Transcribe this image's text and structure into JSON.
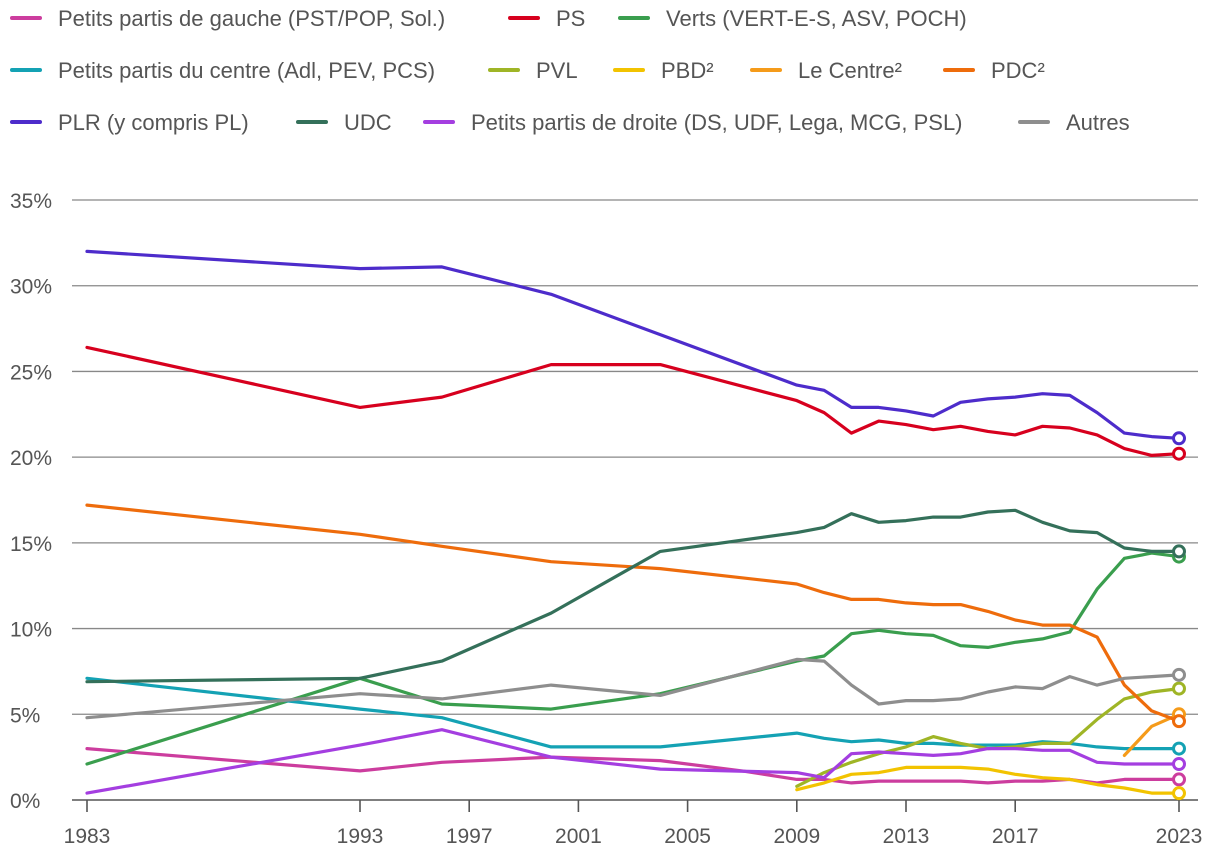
{
  "chart_data": {
    "type": "line",
    "title": "",
    "xlabel": "",
    "ylabel": "",
    "ylim": [
      0,
      35
    ],
    "xlim": [
      1983,
      2023
    ],
    "grid": true,
    "legend_position": "top",
    "x_ticks": [
      1983,
      1993,
      1997,
      2001,
      2005,
      2009,
      2013,
      2017,
      2023
    ],
    "y_ticks": [
      0,
      5,
      10,
      15,
      20,
      25,
      30,
      35
    ],
    "y_tick_labels": [
      "0%",
      "5%",
      "10%",
      "15%",
      "20%",
      "25%",
      "30%",
      "35%"
    ],
    "x_tick_labels": [
      "1983",
      "1993",
      "1997",
      "2001",
      "2005",
      "2009",
      "2013",
      "2017",
      "2023"
    ],
    "series": [
      {
        "name": "Petits partis de gauche (PST/POP, Sol.)",
        "color": "#cc3d9e",
        "x": [
          1983,
          1993,
          1996,
          2000,
          2004,
          2007,
          2009,
          2010,
          2011,
          2012,
          2013,
          2014,
          2015,
          2016,
          2017,
          2018,
          2019,
          2020,
          2021,
          2022,
          2023
        ],
        "values": [
          3.0,
          1.7,
          2.2,
          2.5,
          2.3,
          1.7,
          1.2,
          1.2,
          1.0,
          1.1,
          1.1,
          1.1,
          1.1,
          1.0,
          1.1,
          1.1,
          1.2,
          1.0,
          1.2,
          1.2,
          1.2
        ]
      },
      {
        "name": "PS",
        "color": "#d7001e",
        "x": [
          1983,
          1993,
          1996,
          2000,
          2004,
          2009,
          2010,
          2011,
          2012,
          2013,
          2014,
          2015,
          2016,
          2017,
          2018,
          2019,
          2020,
          2021,
          2022,
          2023
        ],
        "values": [
          26.4,
          22.9,
          23.5,
          25.4,
          25.4,
          23.3,
          22.6,
          21.4,
          22.1,
          21.9,
          21.6,
          21.8,
          21.5,
          21.3,
          21.8,
          21.7,
          21.3,
          20.5,
          20.1,
          20.2
        ]
      },
      {
        "name": "Verts (VERT-E-S, ASV, POCH)",
        "color": "#3a9e4e",
        "x": [
          1983,
          1993,
          1996,
          2000,
          2004,
          2009,
          2010,
          2011,
          2012,
          2013,
          2014,
          2015,
          2016,
          2017,
          2018,
          2019,
          2020,
          2021,
          2022,
          2023
        ],
        "values": [
          2.1,
          7.1,
          5.6,
          5.3,
          6.2,
          8.1,
          8.4,
          9.7,
          9.9,
          9.7,
          9.6,
          9.0,
          8.9,
          9.2,
          9.4,
          9.8,
          12.3,
          14.1,
          14.4,
          14.2
        ]
      },
      {
        "name": "Petits partis du centre (Adl, PEV, PCS)",
        "color": "#14a2b4",
        "x": [
          1983,
          1993,
          1996,
          2000,
          2004,
          2009,
          2010,
          2011,
          2012,
          2013,
          2014,
          2015,
          2016,
          2017,
          2018,
          2019,
          2020,
          2021,
          2022,
          2023
        ],
        "values": [
          7.1,
          5.3,
          4.8,
          3.1,
          3.1,
          3.9,
          3.6,
          3.4,
          3.5,
          3.3,
          3.3,
          3.2,
          3.2,
          3.2,
          3.4,
          3.3,
          3.1,
          3.0,
          3.0,
          3.0
        ]
      },
      {
        "name": "PVL",
        "color": "#9fb526",
        "x": [
          2009,
          2010,
          2011,
          2012,
          2013,
          2014,
          2015,
          2016,
          2017,
          2018,
          2019,
          2020,
          2021,
          2022,
          2023
        ],
        "values": [
          0.8,
          1.6,
          2.2,
          2.7,
          3.1,
          3.7,
          3.3,
          3.0,
          3.1,
          3.3,
          3.3,
          4.7,
          5.9,
          6.3,
          6.5
        ]
      },
      {
        "name": "PBD²",
        "color": "#f2c300",
        "x": [
          2009,
          2010,
          2011,
          2012,
          2013,
          2014,
          2015,
          2016,
          2017,
          2018,
          2019,
          2020,
          2021,
          2022,
          2023
        ],
        "values": [
          0.6,
          1.0,
          1.5,
          1.6,
          1.9,
          1.9,
          1.9,
          1.8,
          1.5,
          1.3,
          1.2,
          0.9,
          0.7,
          0.4,
          0.4
        ]
      },
      {
        "name": "Le Centre²",
        "color": "#f59b1a",
        "x": [
          2021,
          2022,
          2023
        ],
        "values": [
          2.6,
          4.3,
          5.0
        ]
      },
      {
        "name": "PDC²",
        "color": "#ee6c0c",
        "x": [
          1983,
          1993,
          1996,
          2000,
          2004,
          2009,
          2010,
          2011,
          2012,
          2013,
          2014,
          2015,
          2016,
          2017,
          2018,
          2019,
          2020,
          2021,
          2022,
          2023
        ],
        "values": [
          17.2,
          15.5,
          14.8,
          13.9,
          13.5,
          12.6,
          12.1,
          11.7,
          11.7,
          11.5,
          11.4,
          11.4,
          11.0,
          10.5,
          10.2,
          10.2,
          9.5,
          6.7,
          5.2,
          4.6
        ]
      },
      {
        "name": "PLR (y compris PL)",
        "color": "#4d2ccb",
        "x": [
          1983,
          1993,
          1996,
          2000,
          2009,
          2010,
          2011,
          2012,
          2013,
          2014,
          2015,
          2016,
          2017,
          2018,
          2019,
          2020,
          2021,
          2022,
          2023
        ],
        "values": [
          32.0,
          31.0,
          31.1,
          29.5,
          24.2,
          23.9,
          22.9,
          22.9,
          22.7,
          22.4,
          23.2,
          23.4,
          23.5,
          23.7,
          23.6,
          22.6,
          21.4,
          21.2,
          21.1
        ]
      },
      {
        "name": "UDC",
        "color": "#34705a",
        "x": [
          1983,
          1993,
          1996,
          2000,
          2004,
          2009,
          2010,
          2011,
          2012,
          2013,
          2014,
          2015,
          2016,
          2017,
          2018,
          2019,
          2020,
          2021,
          2022,
          2023
        ],
        "values": [
          6.9,
          7.1,
          8.1,
          10.9,
          14.5,
          15.6,
          15.9,
          16.7,
          16.2,
          16.3,
          16.5,
          16.5,
          16.8,
          16.9,
          16.2,
          15.7,
          15.6,
          14.7,
          14.5,
          14.5
        ]
      },
      {
        "name": "Petits partis de droite (DS, UDF, Lega, MCG, PSL)",
        "color": "#a43ee0",
        "x": [
          1983,
          1993,
          1996,
          2000,
          2004,
          2009,
          2010,
          2011,
          2012,
          2013,
          2014,
          2015,
          2016,
          2017,
          2018,
          2019,
          2020,
          2021,
          2022,
          2023
        ],
        "values": [
          0.4,
          3.2,
          4.1,
          2.5,
          1.8,
          1.6,
          1.3,
          2.7,
          2.8,
          2.7,
          2.6,
          2.7,
          3.0,
          3.0,
          2.9,
          2.9,
          2.2,
          2.1,
          2.1,
          2.1
        ]
      },
      {
        "name": "Autres",
        "color": "#8e8e8e",
        "x": [
          1983,
          1993,
          1996,
          2000,
          2004,
          2009,
          2010,
          2011,
          2012,
          2013,
          2014,
          2015,
          2016,
          2017,
          2018,
          2019,
          2020,
          2021,
          2022,
          2023
        ],
        "values": [
          4.8,
          6.2,
          5.9,
          6.7,
          6.1,
          8.2,
          8.1,
          6.7,
          5.6,
          5.8,
          5.8,
          5.9,
          6.3,
          6.6,
          6.5,
          7.2,
          6.7,
          7.1,
          7.2,
          7.3
        ]
      }
    ]
  }
}
